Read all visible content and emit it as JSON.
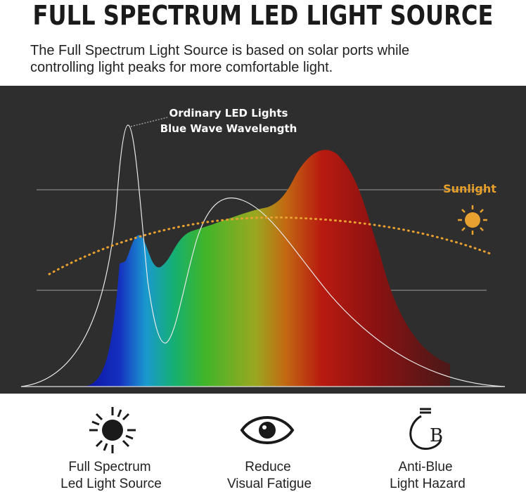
{
  "header": {
    "title": "FULL SPECTRUM LED LIGHT SOURCE",
    "subtitle": [
      "The Full Spectrum Light Source is based on solar ports while",
      "controlling light peaks for more comfortable light."
    ]
  },
  "illustration": {
    "led_label": [
      "Ordinary LED Lights",
      "Blue Wave Wavelength"
    ],
    "sun_label": "Sunlight"
  },
  "features": [
    {
      "label": [
        "Full Spectrum",
        "Led Light Source"
      ]
    },
    {
      "label": [
        "Reduce",
        "Visual Fatigue"
      ]
    },
    {
      "label": [
        "Anti-Blue",
        "Light Hazard"
      ]
    }
  ]
}
